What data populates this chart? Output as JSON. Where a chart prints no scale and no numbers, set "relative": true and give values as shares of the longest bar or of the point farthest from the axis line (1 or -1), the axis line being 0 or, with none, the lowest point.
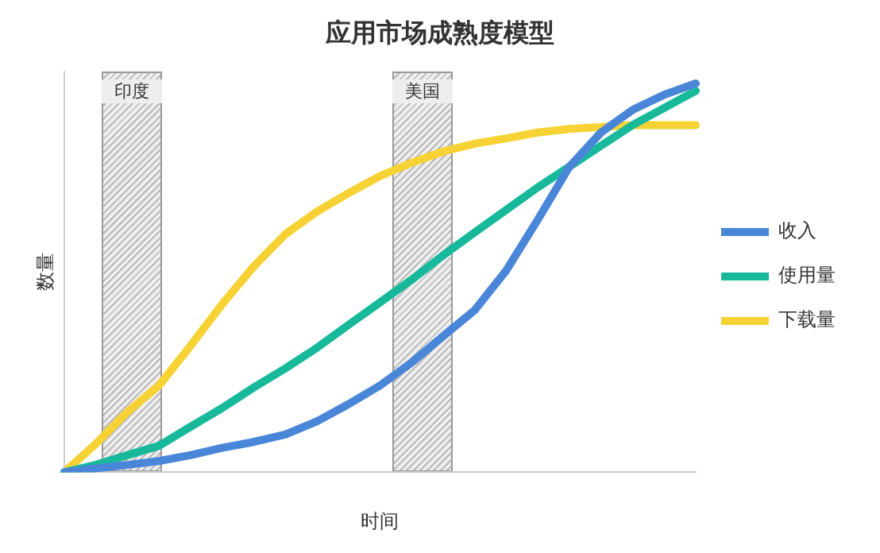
{
  "chart_data": {
    "type": "line",
    "title": "应用市场成熟度模型",
    "xlabel": "时间",
    "ylabel": "数量",
    "relative": true,
    "legend": "right",
    "marker": "none",
    "categories": [
      null,
      null,
      null,
      null,
      null,
      null,
      null,
      null,
      null,
      null,
      null,
      null,
      null,
      null,
      null,
      null,
      null,
      null,
      null,
      null,
      null
    ],
    "series": [
      {
        "name": "收入",
        "color": "#4a86d8",
        "values": [
          0,
          0.01,
          0.019,
          0.029,
          0.044,
          0.063,
          0.078,
          0.097,
          0.131,
          0.175,
          0.223,
          0.282,
          0.35,
          0.417,
          0.519,
          0.65,
          0.786,
          0.874,
          0.932,
          0.971,
          1
        ]
      },
      {
        "name": "使用量",
        "color": "#17b99a",
        "values": [
          0,
          0.019,
          0.044,
          0.068,
          0.117,
          0.165,
          0.218,
          0.267,
          0.32,
          0.379,
          0.437,
          0.495,
          0.558,
          0.617,
          0.675,
          0.733,
          0.786,
          0.84,
          0.893,
          0.937,
          0.981
        ]
      },
      {
        "name": "下载量",
        "color": "#f7d234",
        "values": [
          0,
          0.073,
          0.155,
          0.223,
          0.325,
          0.432,
          0.529,
          0.612,
          0.67,
          0.718,
          0.762,
          0.796,
          0.825,
          0.845,
          0.859,
          0.874,
          0.883,
          0.888,
          0.893,
          0.893,
          0.893
        ]
      }
    ],
    "annotations": [
      "印度",
      "美国"
    ]
  }
}
